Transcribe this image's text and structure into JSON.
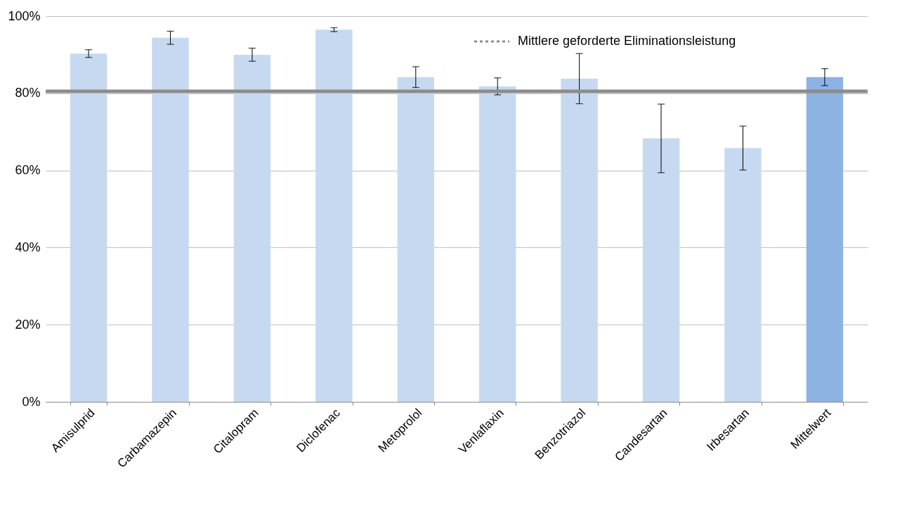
{
  "chart_data": {
    "type": "bar",
    "categories": [
      "Amisulprid",
      "Carbamazepin",
      "Citalopram",
      "Diclofenac",
      "Metoprolol",
      "Venlaflaxin",
      "Benzotriazol",
      "Candesartan",
      "Irbesartan",
      "Mittelwert"
    ],
    "values": [
      90.3,
      94.4,
      90.0,
      96.5,
      84.2,
      81.8,
      83.8,
      68.3,
      65.8,
      84.2
    ],
    "errors": [
      1.0,
      1.7,
      1.7,
      0.5,
      2.7,
      2.2,
      6.5,
      8.9,
      5.7,
      2.2
    ],
    "colors": [
      "#c6d9f1",
      "#c6d9f1",
      "#c6d9f1",
      "#c6d9f1",
      "#c6d9f1",
      "#c6d9f1",
      "#c6d9f1",
      "#c6d9f1",
      "#c6d9f1",
      "#8db3e2"
    ],
    "ylim": [
      0,
      100
    ],
    "yticks": [
      {
        "value": 0,
        "label": "0%"
      },
      {
        "value": 20,
        "label": "20%"
      },
      {
        "value": 40,
        "label": "40%"
      },
      {
        "value": 60,
        "label": "60%"
      },
      {
        "value": 80,
        "label": "80%"
      },
      {
        "value": 100,
        "label": "100%"
      }
    ],
    "grid": "y",
    "legend": "top right",
    "ref_lines": [
      {
        "axis": "y",
        "value": 80.5,
        "label": "Mittlere geforderte Eliminationsleistung",
        "color": "#8c8c8c"
      }
    ]
  }
}
